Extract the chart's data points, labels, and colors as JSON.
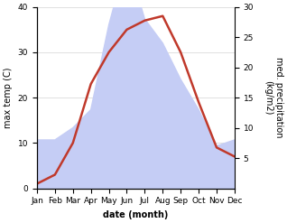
{
  "months": [
    "Jan",
    "Feb",
    "Mar",
    "Apr",
    "May",
    "Jun",
    "Jul",
    "Aug",
    "Sep",
    "Oct",
    "Nov",
    "Dec"
  ],
  "temp": [
    1,
    3,
    10,
    23,
    30,
    35,
    37,
    38,
    30,
    19,
    9,
    7
  ],
  "precip": [
    8,
    8,
    10,
    13,
    27,
    38,
    28,
    24,
    18,
    13,
    7,
    8
  ],
  "temp_color": "#c0392b",
  "precip_fill_color": "#c5cdf5",
  "ylabel_left": "max temp (C)",
  "ylabel_right": "med. precipitation\n(kg/m2)",
  "xlabel": "date (month)",
  "ylim_left": [
    0,
    40
  ],
  "ylim_right": [
    0,
    30
  ],
  "yticks_left": [
    0,
    10,
    20,
    30,
    40
  ],
  "yticks_right": [
    5,
    10,
    15,
    20,
    25,
    30
  ],
  "temp_linewidth": 1.8,
  "ylabel_fontsize": 7,
  "xlabel_fontsize": 7,
  "tick_fontsize": 6.5,
  "fig_width": 3.18,
  "fig_height": 2.47,
  "dpi": 100
}
